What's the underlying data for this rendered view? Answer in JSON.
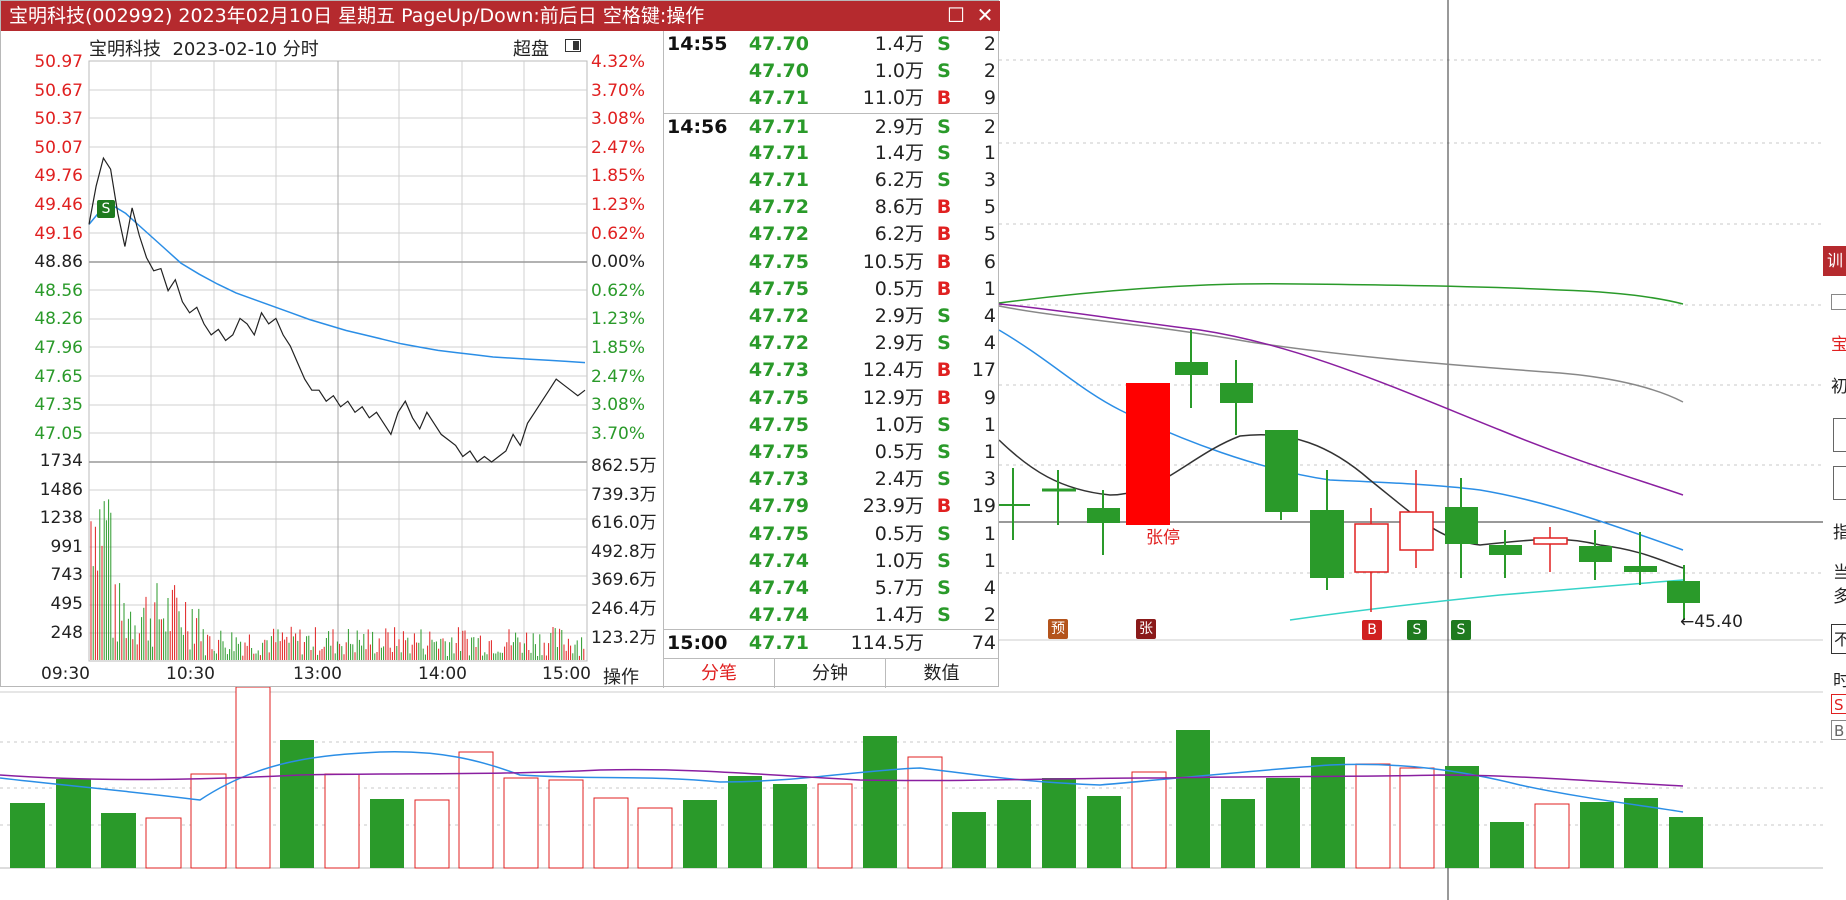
{
  "window": {
    "title": "宝明科技(002992) 2023年02月10日 星期五 PageUp/Down:前后日 空格键:操作",
    "restore_glyph": "☐",
    "close_glyph": "✕"
  },
  "intraday": {
    "stock_name": "宝明科技",
    "date_label": "2023-02-10 分时",
    "mode_label": "超盘",
    "price_labels": [
      {
        "v": "50.97",
        "c": "#e02020"
      },
      {
        "v": "50.67",
        "c": "#e02020"
      },
      {
        "v": "50.37",
        "c": "#e02020"
      },
      {
        "v": "50.07",
        "c": "#e02020"
      },
      {
        "v": "49.76",
        "c": "#e02020"
      },
      {
        "v": "49.46",
        "c": "#e02020"
      },
      {
        "v": "49.16",
        "c": "#e02020"
      },
      {
        "v": "48.86",
        "c": "#222222"
      },
      {
        "v": "48.56",
        "c": "#2a9a2a"
      },
      {
        "v": "48.26",
        "c": "#2a9a2a"
      },
      {
        "v": "47.96",
        "c": "#2a9a2a"
      },
      {
        "v": "47.65",
        "c": "#2a9a2a"
      },
      {
        "v": "47.35",
        "c": "#2a9a2a"
      },
      {
        "v": "47.05",
        "c": "#2a9a2a"
      }
    ],
    "pct_labels": [
      {
        "v": "4.32%",
        "c": "#e02020"
      },
      {
        "v": "3.70%",
        "c": "#e02020"
      },
      {
        "v": "3.08%",
        "c": "#e02020"
      },
      {
        "v": "2.47%",
        "c": "#e02020"
      },
      {
        "v": "1.85%",
        "c": "#e02020"
      },
      {
        "v": "1.23%",
        "c": "#e02020"
      },
      {
        "v": "0.62%",
        "c": "#e02020"
      },
      {
        "v": "0.00%",
        "c": "#222222"
      },
      {
        "v": "0.62%",
        "c": "#2a9a2a"
      },
      {
        "v": "1.23%",
        "c": "#2a9a2a"
      },
      {
        "v": "1.85%",
        "c": "#2a9a2a"
      },
      {
        "v": "2.47%",
        "c": "#2a9a2a"
      },
      {
        "v": "3.08%",
        "c": "#2a9a2a"
      },
      {
        "v": "3.70%",
        "c": "#2a9a2a"
      }
    ],
    "vol_labels_left": [
      "1734",
      "1486",
      "1238",
      "991",
      "743",
      "495",
      "248"
    ],
    "vol_labels_right": [
      "862.5万",
      "739.3万",
      "616.0万",
      "492.8万",
      "369.6万",
      "246.4万",
      "123.2万"
    ],
    "time_labels": [
      "09:30",
      "10:30",
      "13:00",
      "14:00",
      "15:00"
    ],
    "op_label": "操作",
    "marker_s": "S",
    "price_line": [
      49.2,
      49.55,
      49.8,
      49.7,
      49.3,
      49.0,
      49.35,
      49.1,
      48.9,
      48.78,
      48.8,
      48.6,
      48.7,
      48.5,
      48.4,
      48.45,
      48.3,
      48.2,
      48.25,
      48.15,
      48.2,
      48.35,
      48.3,
      48.2,
      48.4,
      48.3,
      48.35,
      48.2,
      48.1,
      47.95,
      47.8,
      47.7,
      47.7,
      47.6,
      47.65,
      47.55,
      47.6,
      47.5,
      47.55,
      47.45,
      47.5,
      47.4,
      47.3,
      47.5,
      47.6,
      47.45,
      47.35,
      47.5,
      47.4,
      47.3,
      47.25,
      47.2,
      47.1,
      47.15,
      47.05,
      47.1,
      47.05,
      47.1,
      47.15,
      47.3,
      47.2,
      47.4,
      47.5,
      47.6,
      47.7,
      47.8,
      47.75,
      47.7,
      47.65,
      47.7
    ],
    "avg_line": [
      49.2,
      49.4,
      49.3,
      49.15,
      49.0,
      48.85,
      48.75,
      48.66,
      48.58,
      48.52,
      48.46,
      48.4,
      48.34,
      48.29,
      48.24,
      48.2,
      48.16,
      48.12,
      48.09,
      48.06,
      48.04,
      48.02,
      48.0,
      47.99,
      47.98,
      47.97,
      47.96,
      47.95
    ]
  },
  "ticks": [
    {
      "time": "14:55",
      "price": "47.70",
      "vol": "1.4万",
      "dir": "S",
      "count": "2"
    },
    {
      "time": "",
      "price": "47.70",
      "vol": "1.0万",
      "dir": "S",
      "count": "2"
    },
    {
      "time": "",
      "price": "47.71",
      "vol": "11.0万",
      "dir": "B",
      "count": "9"
    },
    {
      "time": "14:56",
      "price": "47.71",
      "vol": "2.9万",
      "dir": "S",
      "count": "2"
    },
    {
      "time": "",
      "price": "47.71",
      "vol": "1.4万",
      "dir": "S",
      "count": "1"
    },
    {
      "time": "",
      "price": "47.71",
      "vol": "6.2万",
      "dir": "S",
      "count": "3"
    },
    {
      "time": "",
      "price": "47.72",
      "vol": "8.6万",
      "dir": "B",
      "count": "5"
    },
    {
      "time": "",
      "price": "47.72",
      "vol": "6.2万",
      "dir": "B",
      "count": "5"
    },
    {
      "time": "",
      "price": "47.75",
      "vol": "10.5万",
      "dir": "B",
      "count": "6"
    },
    {
      "time": "",
      "price": "47.75",
      "vol": "0.5万",
      "dir": "B",
      "count": "1"
    },
    {
      "time": "",
      "price": "47.72",
      "vol": "2.9万",
      "dir": "S",
      "count": "4"
    },
    {
      "time": "",
      "price": "47.72",
      "vol": "2.9万",
      "dir": "S",
      "count": "4"
    },
    {
      "time": "",
      "price": "47.73",
      "vol": "12.4万",
      "dir": "B",
      "count": "17"
    },
    {
      "time": "",
      "price": "47.75",
      "vol": "12.9万",
      "dir": "B",
      "count": "9"
    },
    {
      "time": "",
      "price": "47.75",
      "vol": "1.0万",
      "dir": "S",
      "count": "1"
    },
    {
      "time": "",
      "price": "47.75",
      "vol": "0.5万",
      "dir": "S",
      "count": "1"
    },
    {
      "time": "",
      "price": "47.73",
      "vol": "2.4万",
      "dir": "S",
      "count": "3"
    },
    {
      "time": "",
      "price": "47.79",
      "vol": "23.9万",
      "dir": "B",
      "count": "19"
    },
    {
      "time": "",
      "price": "47.75",
      "vol": "0.5万",
      "dir": "S",
      "count": "1"
    },
    {
      "time": "",
      "price": "47.74",
      "vol": "1.0万",
      "dir": "S",
      "count": "1"
    },
    {
      "time": "",
      "price": "47.74",
      "vol": "5.7万",
      "dir": "S",
      "count": "4"
    },
    {
      "time": "",
      "price": "47.74",
      "vol": "1.4万",
      "dir": "S",
      "count": "2"
    },
    {
      "time": "15:00",
      "price": "47.71",
      "vol": "114.5万",
      "dir": "",
      "count": "74"
    }
  ],
  "tabs": [
    {
      "label": "分笔",
      "active": true
    },
    {
      "label": "分钟",
      "active": false
    },
    {
      "label": "数值",
      "active": false
    }
  ],
  "kline": {
    "limit_up_label": "张停",
    "last_price_label": "←45.40",
    "markers": [
      {
        "text": "预",
        "color": "#b4541c"
      },
      {
        "text": "张",
        "color": "#8a1a1a"
      },
      {
        "text": "B",
        "color": "#d02020"
      },
      {
        "text": "S",
        "color": "#1f7a1f"
      },
      {
        "text": "S",
        "color": "#1f7a1f"
      }
    ]
  },
  "right_panel": {
    "labels": [
      "训",
      "宝",
      "初",
      "指",
      "当",
      "多",
      "不",
      "时",
      "S",
      "B"
    ]
  }
}
